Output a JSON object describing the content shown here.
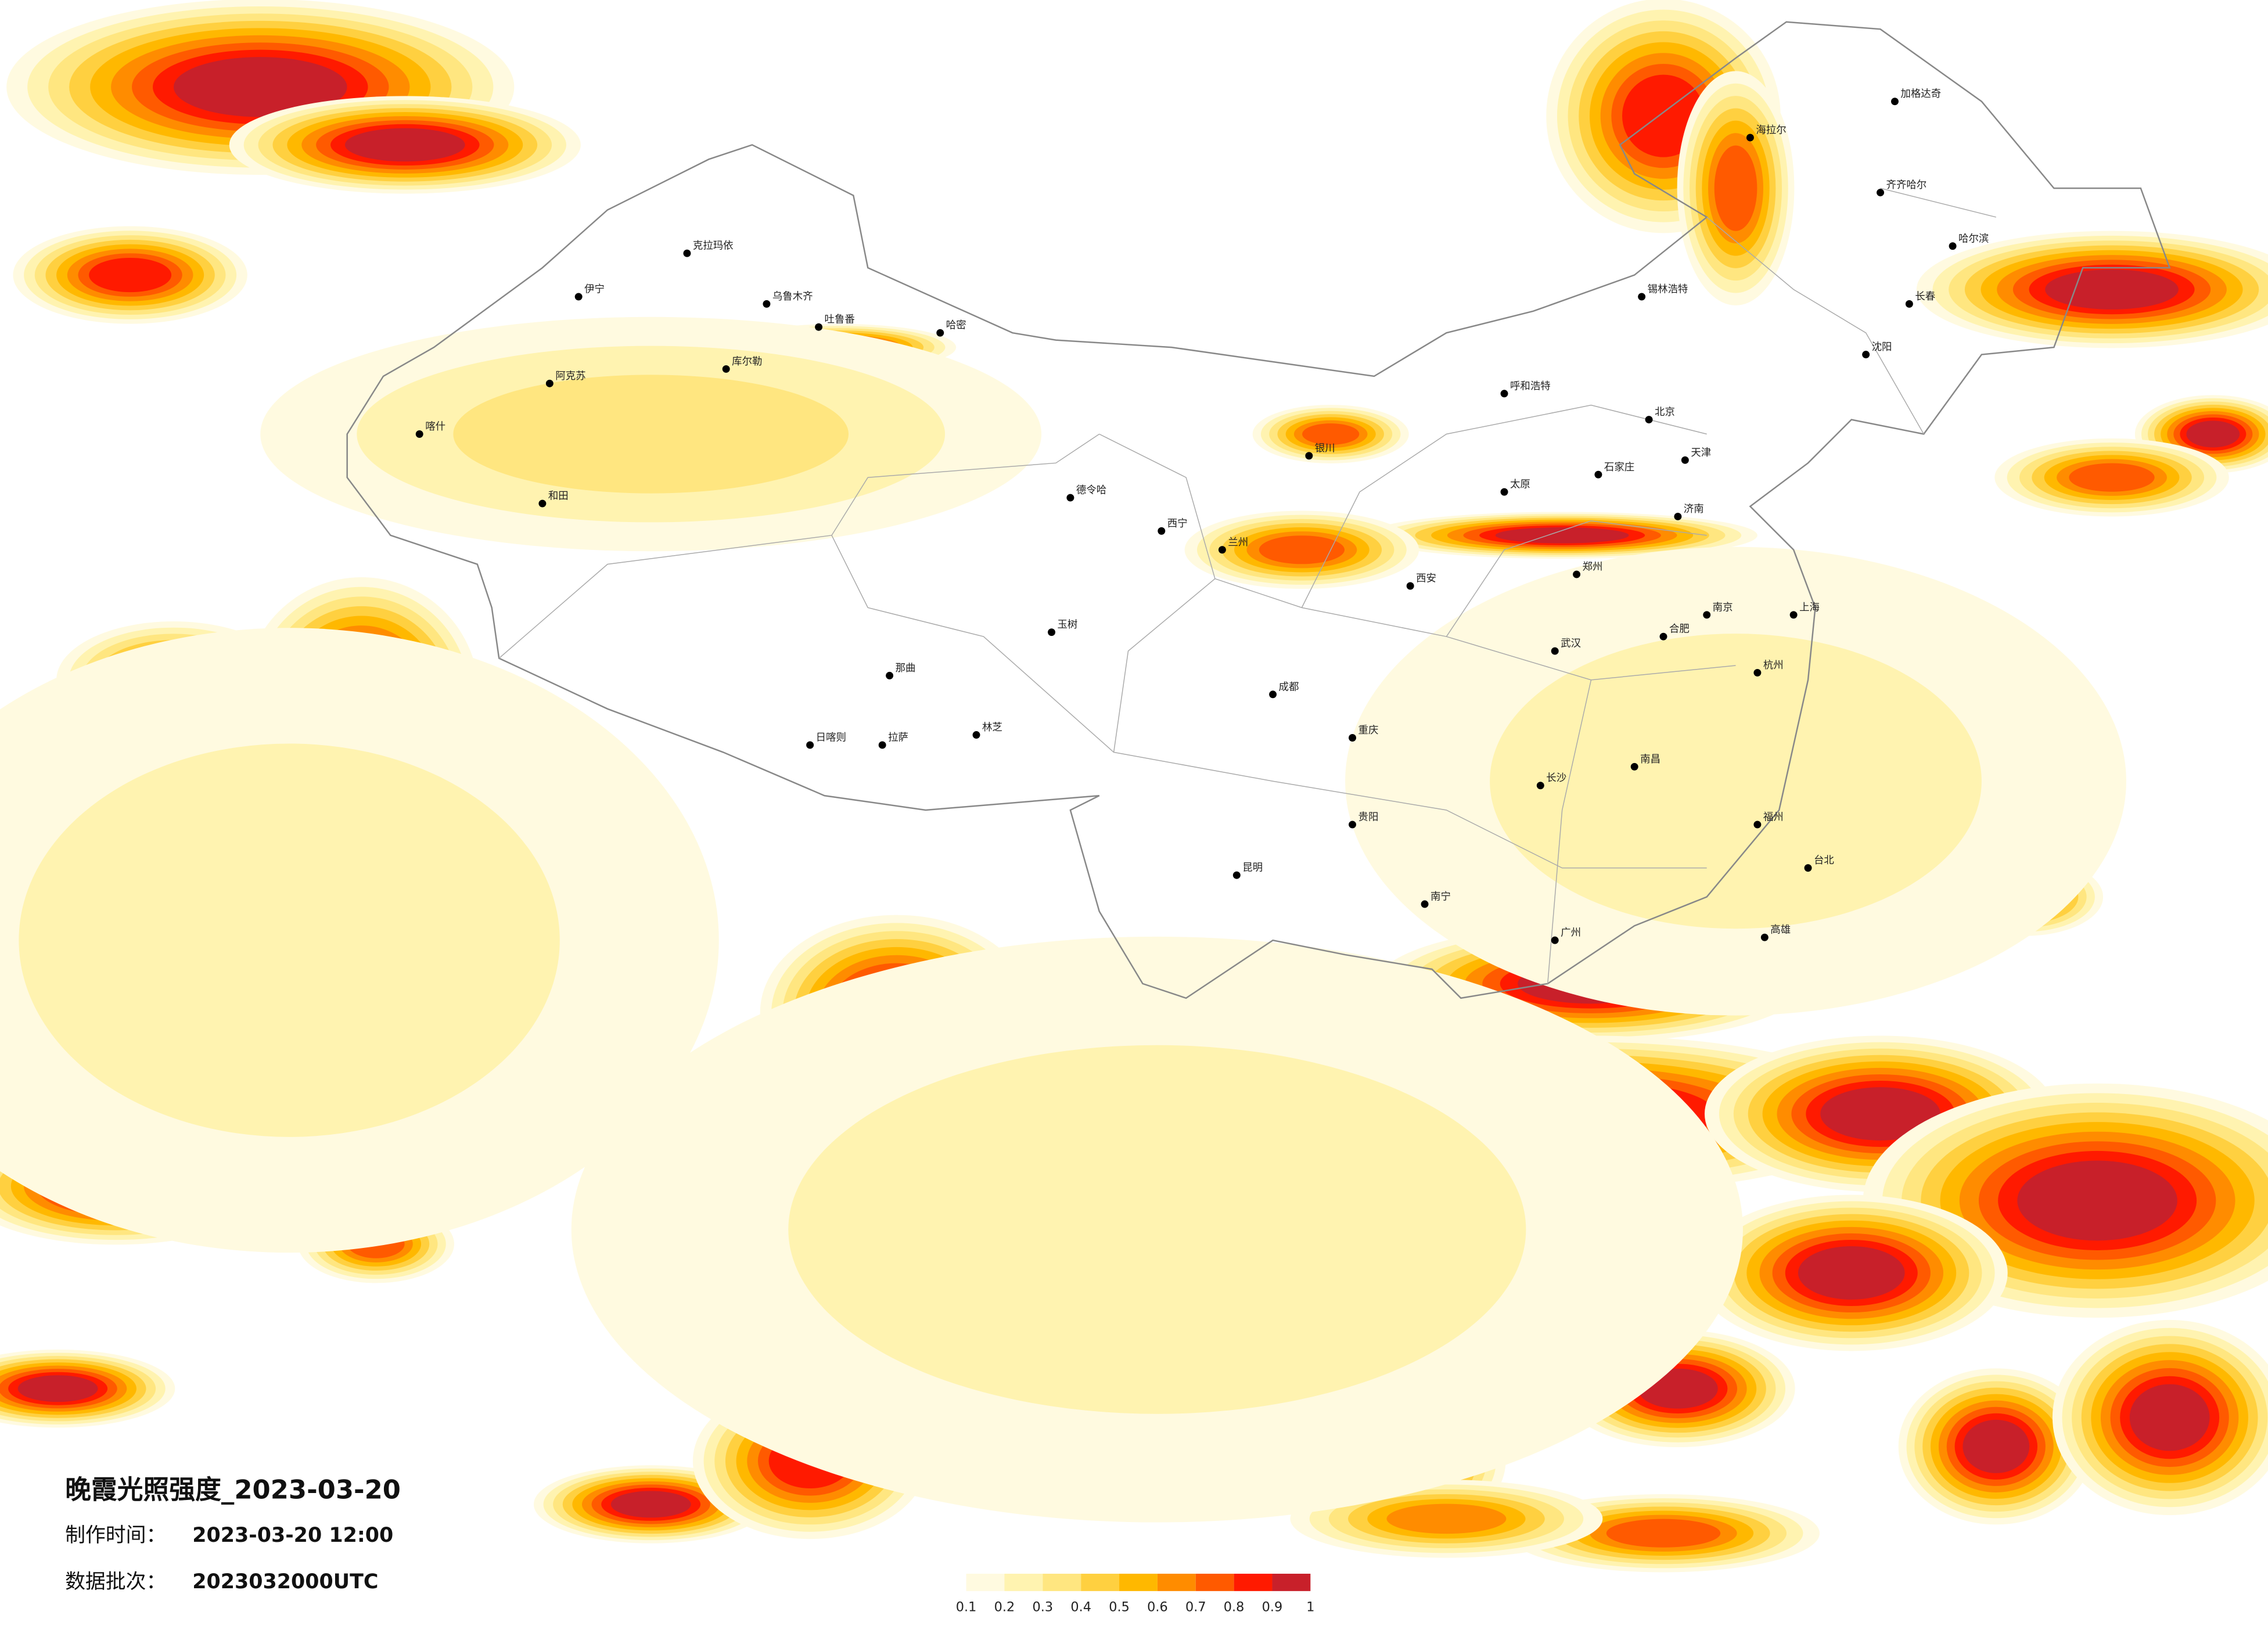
{
  "title": "晚霞光照强度_2023-03-20",
  "info": [
    {
      "label": "制作时间：",
      "value": "2023-03-20 12:00"
    },
    {
      "label": "数据批次：",
      "value": "2023032000UTC"
    }
  ],
  "legend": {
    "colors": [
      "#fffae0",
      "#fff3b0",
      "#ffe680",
      "#ffd040",
      "#ffb800",
      "#ff8c00",
      "#ff5a00",
      "#ff1a00",
      "#c8202a"
    ],
    "ticks": [
      0.1,
      0.2,
      0.3,
      0.4,
      0.5,
      0.6,
      0.7,
      0.8,
      0.9,
      1
    ]
  },
  "cities": [
    "克拉玛依",
    "乌鲁木齐",
    "吐鲁番",
    "哈密",
    "库尔勒",
    "阿克苏",
    "喀什",
    "和田",
    "伊宁",
    "拉萨",
    "日喀则",
    "林芝",
    "那曲",
    "玉树",
    "德令哈",
    "西宁",
    "兰州",
    "银川",
    "呼和浩特",
    "北京",
    "天津",
    "石家庄",
    "太原",
    "济南",
    "郑州",
    "西安",
    "武汉",
    "成都",
    "重庆",
    "贵阳",
    "昆明",
    "南宁",
    "广州",
    "长沙",
    "南昌",
    "福州",
    "杭州",
    "上海",
    "南京",
    "合肥",
    "哈尔滨",
    "长春",
    "沈阳",
    "海拉尔",
    "齐齐哈尔",
    "加格达奇",
    "锡林浩特",
    "台北",
    "高雄"
  ]
}
